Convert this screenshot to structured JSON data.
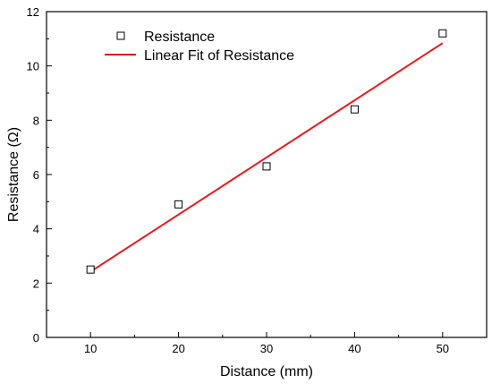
{
  "chart_data": {
    "type": "scatter",
    "title": "",
    "xlabel": "Distance (mm)",
    "ylabel": "Resistance (Ω)",
    "xlim": [
      5,
      55
    ],
    "ylim": [
      0,
      12
    ],
    "x_ticks": [
      10,
      20,
      30,
      40,
      50
    ],
    "y_ticks": [
      0,
      2,
      4,
      6,
      8,
      10,
      12
    ],
    "grid": false,
    "legend_position": "top-left",
    "series": [
      {
        "name": "Resistance",
        "kind": "scatter",
        "marker": "open-square",
        "color": "#000000",
        "x": [
          10,
          20,
          30,
          40,
          50
        ],
        "y": [
          2.5,
          4.9,
          6.3,
          8.4,
          11.2
        ]
      },
      {
        "name": "Linear Fit of Resistance",
        "kind": "line",
        "color": "#e41a1c",
        "x": [
          10,
          50
        ],
        "y": [
          2.42,
          10.84
        ]
      }
    ]
  }
}
